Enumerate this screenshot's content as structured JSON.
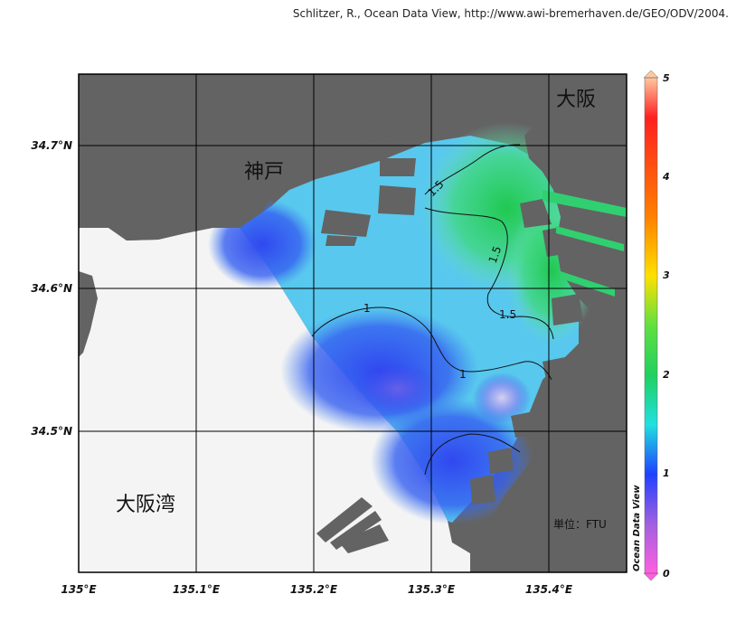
{
  "credit": "Schlitzer, R., Ocean Data View, http://www.awi-bremerhaven.de/GEO/ODV/2004.",
  "axes": {
    "x_ticks": [
      "135°E",
      "135.1°E",
      "135.2°E",
      "135.3°E",
      "135.4°E"
    ],
    "y_ticks": [
      "34.7°N",
      "34.6°N",
      "34.5°N"
    ]
  },
  "places": {
    "kobe": "神戸",
    "osaka": "大阪",
    "osaka_bay": "大阪湾"
  },
  "contours": [
    "1.5",
    "1.5",
    "1.5",
    "1",
    "1"
  ],
  "unit_label": "単位：FTU",
  "brand": "Ocean Data View",
  "colorbar": {
    "ticks": [
      "5",
      "4",
      "3",
      "2",
      "1",
      "0"
    ],
    "range": [
      0,
      5
    ],
    "colors": [
      "#ffc8a0",
      "#ff2020",
      "#ff8000",
      "#ffe000",
      "#30d030",
      "#20e0e0",
      "#2040ff",
      "#a060e0",
      "#ff60e0"
    ]
  },
  "colors": {
    "land": "#636363",
    "no_data_sea": "#f4f4f4"
  }
}
